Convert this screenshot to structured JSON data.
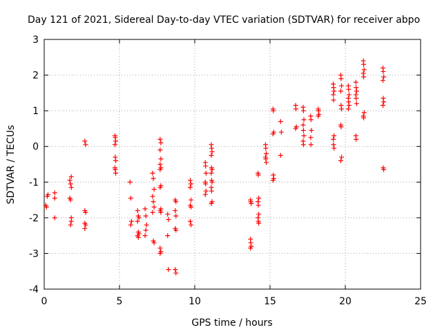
{
  "chart_data": {
    "type": "scatter",
    "title": "Day 121 of 2021, Sidereal Day-to-day VTEC variation (SDTVAR) for receiver abpo",
    "xlabel": "GPS time / hours",
    "ylabel": "SDTVAR / TECUs",
    "xlim": [
      0,
      25
    ],
    "ylim": [
      -4,
      3
    ],
    "xticks": [
      "0",
      "5",
      "10",
      "15",
      "20",
      "25"
    ],
    "yticks": [
      "-4",
      "-3",
      "-2",
      "-1",
      "0",
      "1",
      "2",
      "3"
    ],
    "grid": true,
    "marker": "plus",
    "color": "#ff0000",
    "series": [
      {
        "name": "SDTVAR",
        "points": [
          [
            0.1,
            -1.65
          ],
          [
            0.15,
            -1.7
          ],
          [
            0.2,
            -1.4
          ],
          [
            0.25,
            -1.35
          ],
          [
            0.7,
            -1.3
          ],
          [
            0.7,
            -1.45
          ],
          [
            0.7,
            -2.0
          ],
          [
            1.7,
            -0.95
          ],
          [
            1.75,
            -1.05
          ],
          [
            1.8,
            -1.15
          ],
          [
            1.8,
            -0.85
          ],
          [
            1.7,
            -1.45
          ],
          [
            1.75,
            -1.5
          ],
          [
            1.8,
            -2.0
          ],
          [
            1.8,
            -2.1
          ],
          [
            1.75,
            -2.2
          ],
          [
            2.7,
            0.15
          ],
          [
            2.75,
            0.05
          ],
          [
            2.7,
            -1.8
          ],
          [
            2.75,
            -1.85
          ],
          [
            2.7,
            -2.15
          ],
          [
            2.75,
            -2.2
          ],
          [
            2.7,
            -2.3
          ],
          [
            4.7,
            0.3
          ],
          [
            4.72,
            0.25
          ],
          [
            4.75,
            0.15
          ],
          [
            4.7,
            0.05
          ],
          [
            4.72,
            -0.3
          ],
          [
            4.75,
            -0.4
          ],
          [
            4.7,
            -0.6
          ],
          [
            4.72,
            -0.65
          ],
          [
            4.75,
            -0.75
          ],
          [
            5.7,
            -1.0
          ],
          [
            5.75,
            -1.45
          ],
          [
            5.8,
            -2.1
          ],
          [
            5.75,
            -2.2
          ],
          [
            6.2,
            -1.8
          ],
          [
            6.25,
            -1.95
          ],
          [
            6.3,
            -2.0
          ],
          [
            6.2,
            -2.1
          ],
          [
            6.25,
            -2.4
          ],
          [
            6.3,
            -2.45
          ],
          [
            6.2,
            -2.5
          ],
          [
            6.25,
            -2.55
          ],
          [
            6.7,
            -1.75
          ],
          [
            6.75,
            -1.95
          ],
          [
            6.8,
            -2.2
          ],
          [
            6.75,
            -2.35
          ],
          [
            6.7,
            -2.5
          ],
          [
            7.2,
            -0.75
          ],
          [
            7.25,
            -0.9
          ],
          [
            7.3,
            -1.2
          ],
          [
            7.2,
            -1.4
          ],
          [
            7.25,
            -1.55
          ],
          [
            7.3,
            -1.7
          ],
          [
            7.2,
            -1.85
          ],
          [
            7.25,
            -2.65
          ],
          [
            7.3,
            -2.7
          ],
          [
            7.7,
            0.2
          ],
          [
            7.75,
            0.1
          ],
          [
            7.7,
            -0.1
          ],
          [
            7.75,
            -0.35
          ],
          [
            7.7,
            -0.5
          ],
          [
            7.75,
            -0.6
          ],
          [
            7.7,
            -0.65
          ],
          [
            7.75,
            -1.1
          ],
          [
            7.7,
            -1.15
          ],
          [
            7.75,
            -1.75
          ],
          [
            7.7,
            -1.8
          ],
          [
            7.75,
            -1.85
          ],
          [
            7.7,
            -2.85
          ],
          [
            7.75,
            -2.95
          ],
          [
            7.7,
            -3.0
          ],
          [
            8.2,
            -1.9
          ],
          [
            8.25,
            -2.05
          ],
          [
            8.2,
            -2.5
          ],
          [
            8.25,
            -3.45
          ],
          [
            8.7,
            -1.5
          ],
          [
            8.75,
            -1.55
          ],
          [
            8.7,
            -1.8
          ],
          [
            8.75,
            -1.95
          ],
          [
            8.7,
            -2.3
          ],
          [
            8.75,
            -2.35
          ],
          [
            8.7,
            -3.45
          ],
          [
            8.75,
            -3.55
          ],
          [
            9.7,
            -0.95
          ],
          [
            9.75,
            -1.05
          ],
          [
            9.7,
            -1.15
          ],
          [
            9.75,
            -1.5
          ],
          [
            9.7,
            -1.65
          ],
          [
            9.75,
            -1.7
          ],
          [
            9.7,
            -2.1
          ],
          [
            9.75,
            -2.2
          ],
          [
            10.7,
            -0.45
          ],
          [
            10.72,
            -0.55
          ],
          [
            10.75,
            -0.75
          ],
          [
            10.7,
            -1.0
          ],
          [
            10.72,
            -1.05
          ],
          [
            10.75,
            -1.25
          ],
          [
            10.7,
            -1.35
          ],
          [
            11.1,
            0.05
          ],
          [
            11.12,
            -0.05
          ],
          [
            11.15,
            -0.15
          ],
          [
            11.1,
            -0.25
          ],
          [
            11.12,
            -0.6
          ],
          [
            11.15,
            -0.65
          ],
          [
            11.1,
            -0.75
          ],
          [
            11.12,
            -0.95
          ],
          [
            11.15,
            -1.0
          ],
          [
            11.1,
            -1.15
          ],
          [
            11.12,
            -1.25
          ],
          [
            11.15,
            -1.55
          ],
          [
            11.1,
            -1.6
          ],
          [
            13.7,
            -1.5
          ],
          [
            13.72,
            -1.55
          ],
          [
            13.75,
            -1.6
          ],
          [
            13.7,
            -2.6
          ],
          [
            13.72,
            -2.7
          ],
          [
            13.75,
            -2.8
          ],
          [
            13.7,
            -2.85
          ],
          [
            14.2,
            -0.75
          ],
          [
            14.22,
            -0.8
          ],
          [
            14.25,
            -1.45
          ],
          [
            14.2,
            -1.55
          ],
          [
            14.22,
            -1.65
          ],
          [
            14.25,
            -1.9
          ],
          [
            14.2,
            -2.0
          ],
          [
            14.22,
            -2.1
          ],
          [
            14.25,
            -2.15
          ],
          [
            14.7,
            0.05
          ],
          [
            14.72,
            -0.05
          ],
          [
            14.75,
            -0.2
          ],
          [
            14.7,
            -0.3
          ],
          [
            14.72,
            -0.35
          ],
          [
            14.75,
            -0.45
          ],
          [
            15.2,
            1.05
          ],
          [
            15.22,
            1.0
          ],
          [
            15.25,
            0.4
          ],
          [
            15.2,
            0.35
          ],
          [
            15.22,
            -0.8
          ],
          [
            15.25,
            -0.9
          ],
          [
            15.2,
            -0.95
          ],
          [
            15.7,
            0.7
          ],
          [
            15.75,
            0.4
          ],
          [
            15.7,
            -0.25
          ],
          [
            16.7,
            1.15
          ],
          [
            16.72,
            1.05
          ],
          [
            16.75,
            0.55
          ],
          [
            16.7,
            0.5
          ],
          [
            17.2,
            1.1
          ],
          [
            17.22,
            1.0
          ],
          [
            17.25,
            0.75
          ],
          [
            17.2,
            0.6
          ],
          [
            17.22,
            0.45
          ],
          [
            17.25,
            0.3
          ],
          [
            17.2,
            0.15
          ],
          [
            17.22,
            0.05
          ],
          [
            17.7,
            0.85
          ],
          [
            17.72,
            0.75
          ],
          [
            17.75,
            0.45
          ],
          [
            17.7,
            0.25
          ],
          [
            17.72,
            0.05
          ],
          [
            18.2,
            1.05
          ],
          [
            18.22,
            1.0
          ],
          [
            18.25,
            0.9
          ],
          [
            18.2,
            0.85
          ],
          [
            19.2,
            1.75
          ],
          [
            19.22,
            1.65
          ],
          [
            19.25,
            1.55
          ],
          [
            19.2,
            1.45
          ],
          [
            19.22,
            1.3
          ],
          [
            19.25,
            0.3
          ],
          [
            19.2,
            0.2
          ],
          [
            19.22,
            0.05
          ],
          [
            19.25,
            -0.05
          ],
          [
            19.7,
            2.0
          ],
          [
            19.72,
            1.9
          ],
          [
            19.75,
            1.7
          ],
          [
            19.7,
            1.55
          ],
          [
            19.72,
            1.15
          ],
          [
            19.75,
            1.05
          ],
          [
            19.7,
            0.6
          ],
          [
            19.72,
            0.55
          ],
          [
            19.75,
            -0.3
          ],
          [
            19.7,
            -0.4
          ],
          [
            20.2,
            1.7
          ],
          [
            20.22,
            1.6
          ],
          [
            20.25,
            1.45
          ],
          [
            20.2,
            1.35
          ],
          [
            20.22,
            1.25
          ],
          [
            20.25,
            1.15
          ],
          [
            20.2,
            1.05
          ],
          [
            20.7,
            1.8
          ],
          [
            20.72,
            1.65
          ],
          [
            20.75,
            1.55
          ],
          [
            20.7,
            1.45
          ],
          [
            20.72,
            1.35
          ],
          [
            20.75,
            1.2
          ],
          [
            20.7,
            0.3
          ],
          [
            20.72,
            0.2
          ],
          [
            21.2,
            2.4
          ],
          [
            21.22,
            2.3
          ],
          [
            21.25,
            2.15
          ],
          [
            21.2,
            2.05
          ],
          [
            21.22,
            1.95
          ],
          [
            21.25,
            0.95
          ],
          [
            21.2,
            0.85
          ],
          [
            21.22,
            0.8
          ],
          [
            22.5,
            2.2
          ],
          [
            22.52,
            2.1
          ],
          [
            22.55,
            1.95
          ],
          [
            22.5,
            1.85
          ],
          [
            22.52,
            1.35
          ],
          [
            22.55,
            1.25
          ],
          [
            22.5,
            1.15
          ],
          [
            22.52,
            -0.6
          ],
          [
            22.55,
            -0.65
          ]
        ]
      }
    ]
  }
}
